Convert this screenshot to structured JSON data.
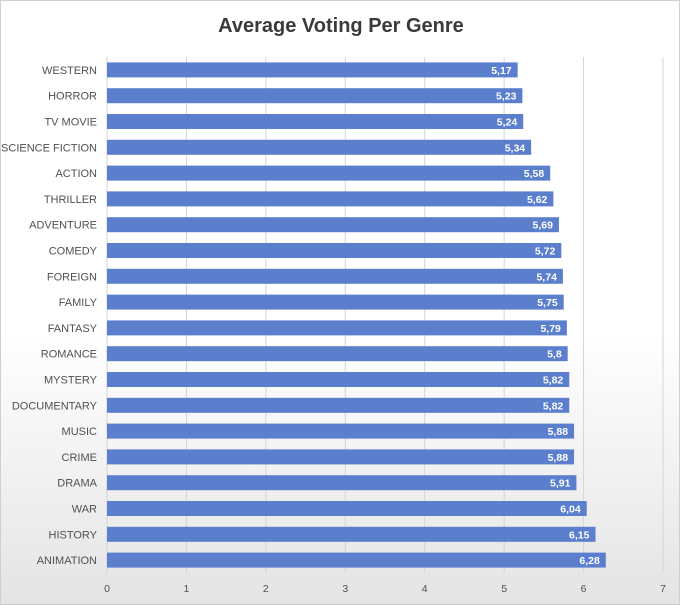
{
  "chart_data": {
    "type": "bar",
    "orientation": "horizontal",
    "title": "Average Voting Per Genre",
    "categories": [
      "WESTERN",
      "HORROR",
      "TV MOVIE",
      "SCIENCE FICTION",
      "ACTION",
      "THRILLER",
      "ADVENTURE",
      "COMEDY",
      "FOREIGN",
      "FAMILY",
      "FANTASY",
      "ROMANCE",
      "MYSTERY",
      "DOCUMENTARY",
      "MUSIC",
      "CRIME",
      "DRAMA",
      "WAR",
      "HISTORY",
      "ANIMATION"
    ],
    "values": [
      5.17,
      5.23,
      5.24,
      5.34,
      5.58,
      5.62,
      5.69,
      5.72,
      5.74,
      5.75,
      5.79,
      5.8,
      5.82,
      5.82,
      5.88,
      5.88,
      5.91,
      6.04,
      6.15,
      6.28
    ],
    "value_labels": [
      "5,17",
      "5,23",
      "5,24",
      "5,34",
      "5,58",
      "5,62",
      "5,69",
      "5,72",
      "5,74",
      "5,75",
      "5,79",
      "5,8",
      "5,82",
      "5,82",
      "5,88",
      "5,88",
      "5,91",
      "6,04",
      "6,15",
      "6,28"
    ],
    "xlim": [
      0,
      7
    ],
    "x_ticks": [
      "0",
      "1",
      "2",
      "3",
      "4",
      "5",
      "6",
      "7"
    ],
    "grid": true,
    "bar_color": "#5b7fcc"
  }
}
